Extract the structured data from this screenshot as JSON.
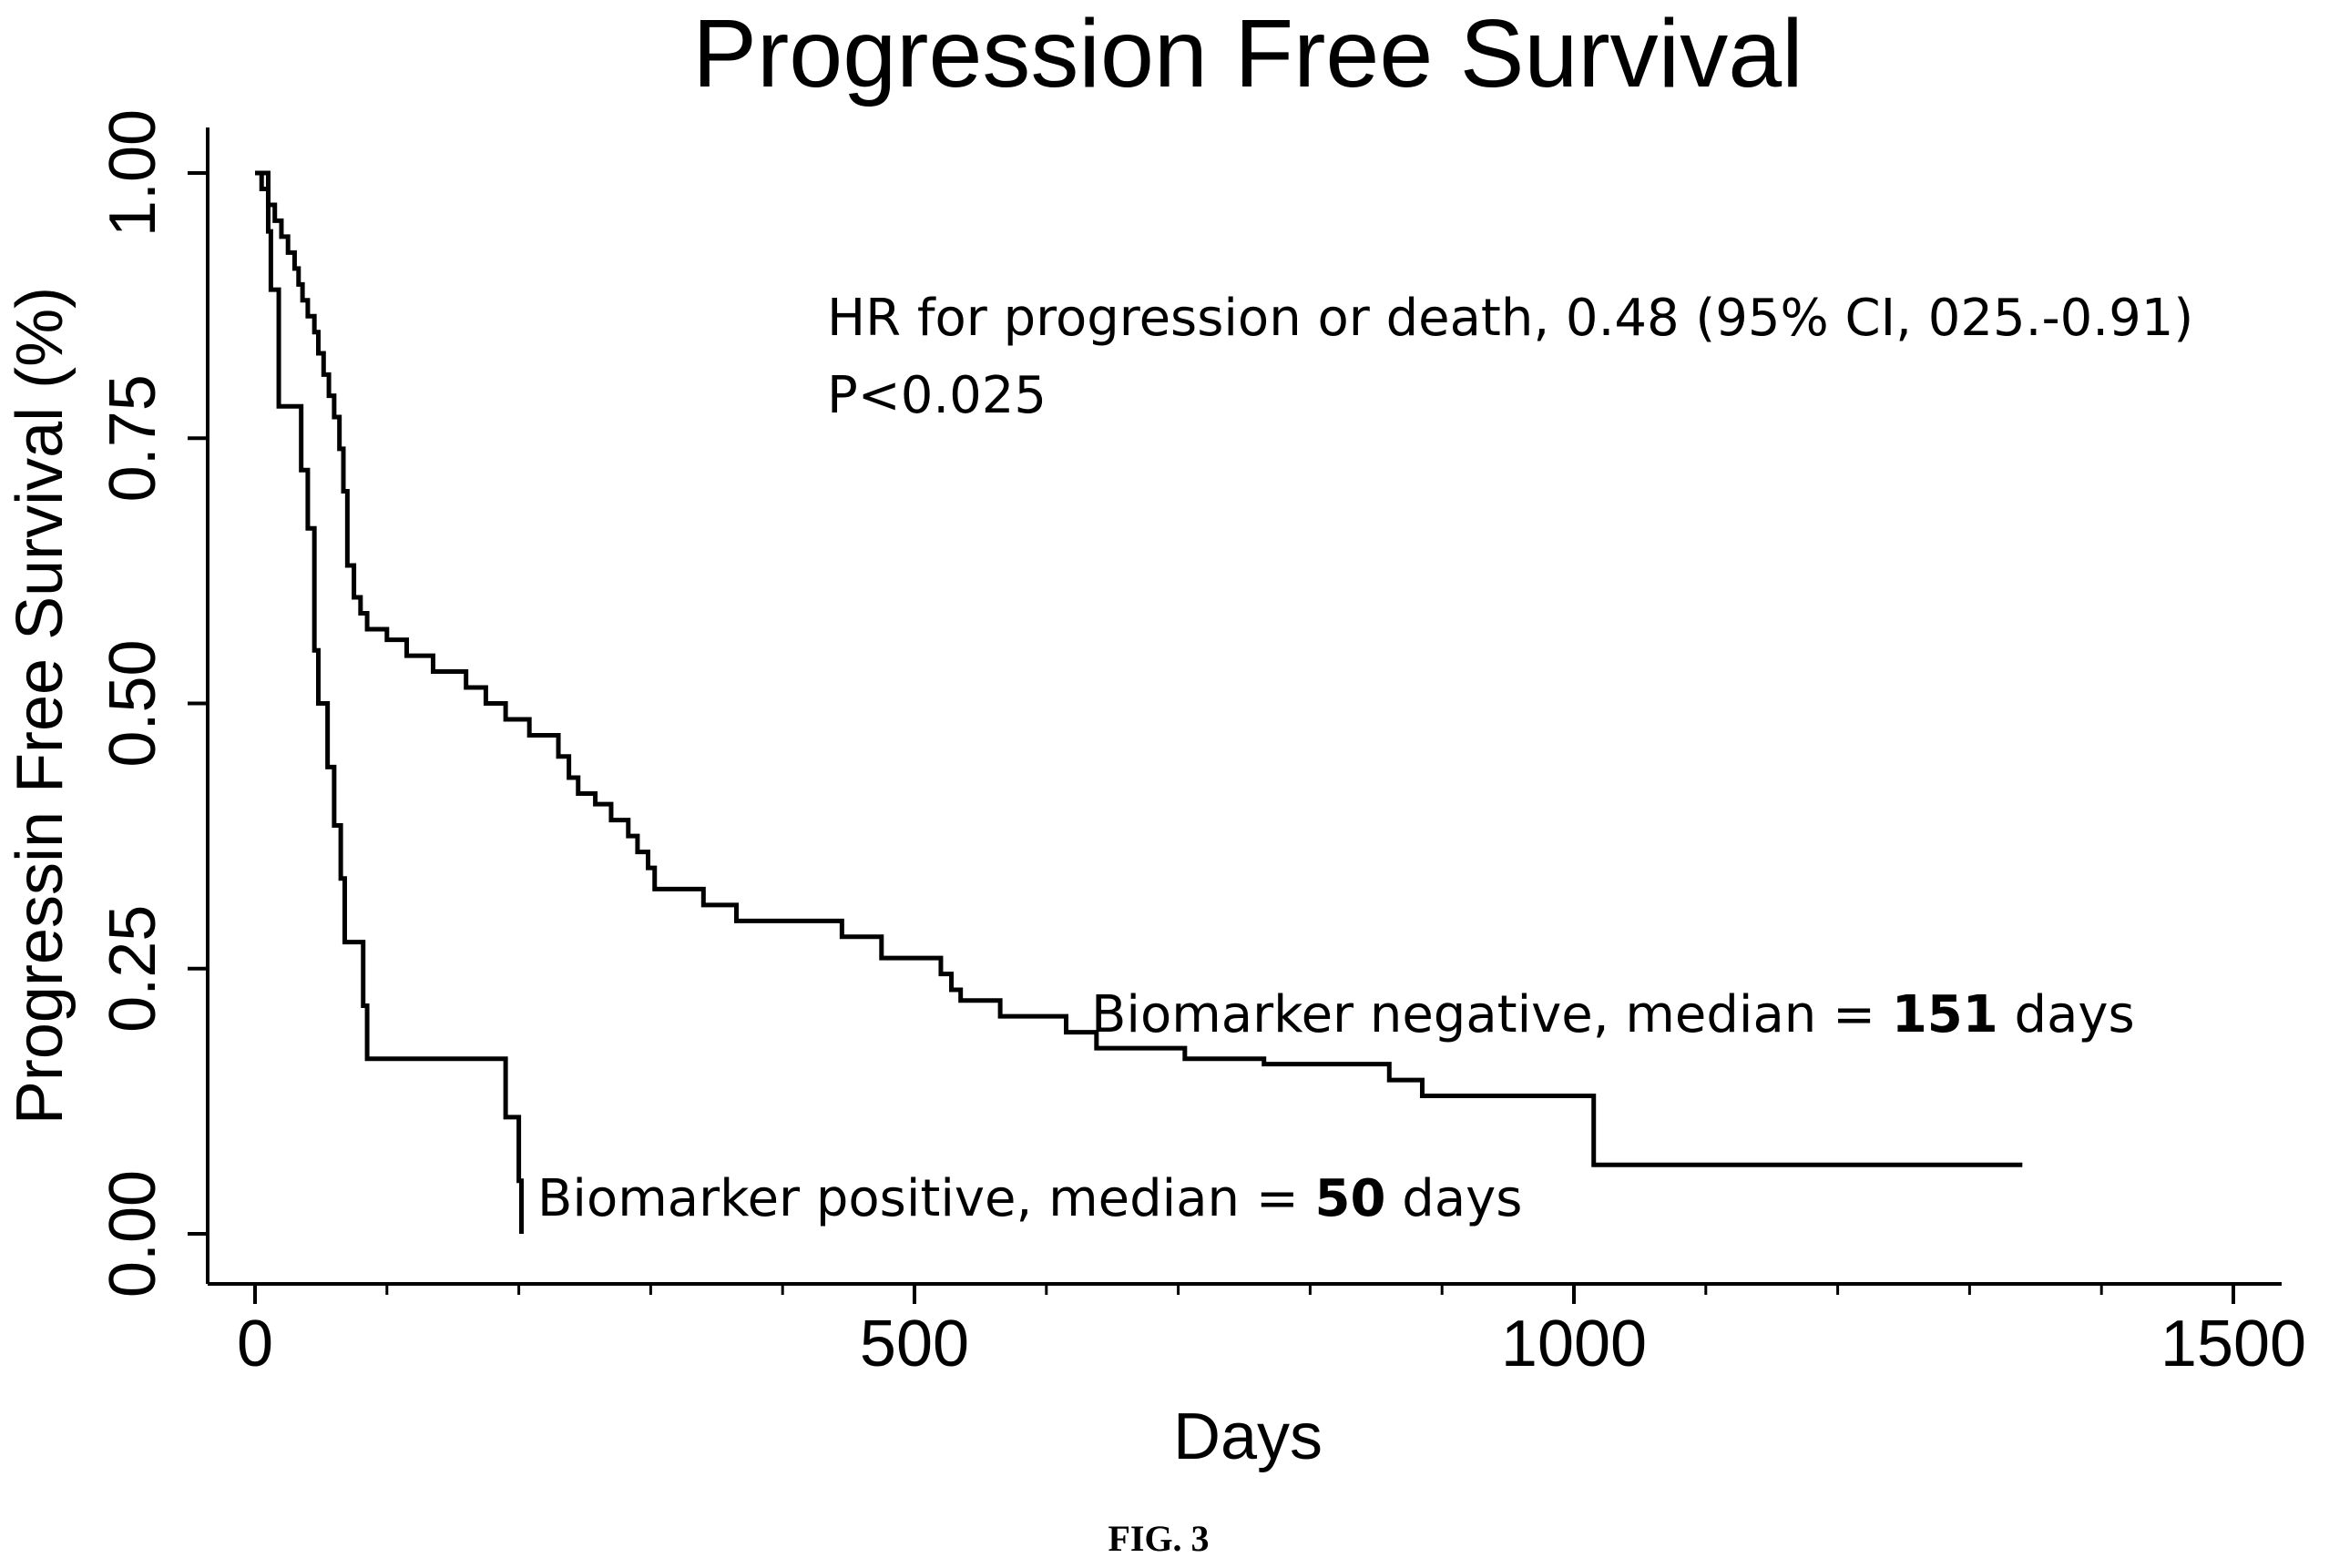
{
  "chart_data": {
    "type": "line",
    "step": true,
    "title": "Progression Free Survival",
    "xlabel": "Days",
    "ylabel": "Progressin Free Survival (%)",
    "xlim": [
      0,
      1500
    ],
    "ylim": [
      0,
      1
    ],
    "xticks": [
      0,
      500,
      1000,
      1500
    ],
    "xtick_labels": [
      "0",
      "500",
      "1000",
      "1500"
    ],
    "x_minor_step": 100,
    "yticks": [
      0,
      0.25,
      0.5,
      0.75,
      1
    ],
    "ytick_labels": [
      "0.00",
      "0.25",
      "0.50",
      "0.75",
      "1.00"
    ],
    "grid": false,
    "legend": "none",
    "annotation": {
      "line1": "HR for progression or death, 0.48 (95% CI, 025.-0.91)",
      "line2": "P<0.025"
    },
    "series": [
      {
        "label_prefix": "Biomarker negative, median = ",
        "label_median": "151",
        "label_suffix": " days",
        "color": "#000000",
        "points": [
          [
            0,
            1.0
          ],
          [
            5,
            0.985
          ],
          [
            10,
            0.97
          ],
          [
            15,
            0.955
          ],
          [
            20,
            0.94
          ],
          [
            25,
            0.925
          ],
          [
            30,
            0.91
          ],
          [
            33,
            0.895
          ],
          [
            36,
            0.88
          ],
          [
            40,
            0.865
          ],
          [
            45,
            0.85
          ],
          [
            48,
            0.83
          ],
          [
            52,
            0.81
          ],
          [
            56,
            0.79
          ],
          [
            60,
            0.77
          ],
          [
            64,
            0.74
          ],
          [
            67,
            0.7
          ],
          [
            70,
            0.63
          ],
          [
            75,
            0.6
          ],
          [
            80,
            0.585
          ],
          [
            85,
            0.57
          ],
          [
            100,
            0.56
          ],
          [
            115,
            0.545
          ],
          [
            135,
            0.53
          ],
          [
            160,
            0.515
          ],
          [
            175,
            0.5
          ],
          [
            190,
            0.485
          ],
          [
            208,
            0.47
          ],
          [
            230,
            0.45
          ],
          [
            238,
            0.43
          ],
          [
            245,
            0.415
          ],
          [
            258,
            0.405
          ],
          [
            270,
            0.39
          ],
          [
            283,
            0.375
          ],
          [
            290,
            0.36
          ],
          [
            298,
            0.345
          ],
          [
            303,
            0.325
          ],
          [
            340,
            0.31
          ],
          [
            365,
            0.295
          ],
          [
            445,
            0.28
          ],
          [
            475,
            0.26
          ],
          [
            520,
            0.245
          ],
          [
            528,
            0.23
          ],
          [
            535,
            0.22
          ],
          [
            565,
            0.205
          ],
          [
            615,
            0.19
          ],
          [
            638,
            0.175
          ],
          [
            705,
            0.165
          ],
          [
            765,
            0.16
          ],
          [
            860,
            0.145
          ],
          [
            885,
            0.13
          ],
          [
            1015,
            0.065
          ],
          [
            1340,
            0.065
          ]
        ]
      },
      {
        "label_prefix": "Biomarker positive, median = ",
        "label_median": "50",
        "label_suffix": " days",
        "color": "#000000",
        "points": [
          [
            0,
            1.0
          ],
          [
            10,
            0.945
          ],
          [
            12,
            0.89
          ],
          [
            18,
            0.78
          ],
          [
            35,
            0.72
          ],
          [
            40,
            0.665
          ],
          [
            45,
            0.55
          ],
          [
            48,
            0.5
          ],
          [
            55,
            0.44
          ],
          [
            60,
            0.385
          ],
          [
            65,
            0.335
          ],
          [
            68,
            0.275
          ],
          [
            82,
            0.215
          ],
          [
            85,
            0.165
          ],
          [
            190,
            0.11
          ],
          [
            200,
            0.05
          ],
          [
            202,
            0.0
          ]
        ]
      }
    ]
  },
  "caption": "FIG. 3"
}
